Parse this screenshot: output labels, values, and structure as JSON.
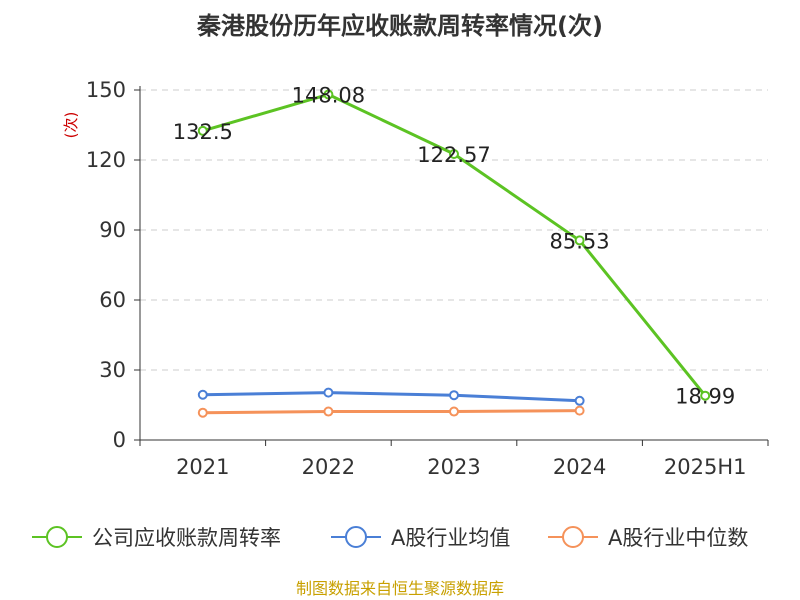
{
  "chart_data": {
    "type": "line",
    "title": "秦港股份历年应收账款周转率情况(次)",
    "ylabel": "(次)",
    "xlabel": "",
    "categories": [
      "2021",
      "2022",
      "2023",
      "2024",
      "2025H1"
    ],
    "ylim": [
      0,
      150
    ],
    "yticks": [
      0,
      30,
      60,
      90,
      120,
      150
    ],
    "grid": true,
    "legend_position": "bottom",
    "series": [
      {
        "name": "公司应收账款周转率",
        "color": "#5cc323",
        "values": [
          132.5,
          148.08,
          122.57,
          85.53,
          18.99
        ],
        "labels": [
          "132.5",
          "148.08",
          "122.57",
          "85.53",
          "18.99"
        ]
      },
      {
        "name": "A股行业均值",
        "color": "#4a7fd6",
        "values": [
          19.4,
          20.3,
          19.2,
          16.8,
          null
        ]
      },
      {
        "name": "A股行业中位数",
        "color": "#f5925a",
        "values": [
          11.7,
          12.2,
          12.2,
          12.6,
          null
        ]
      }
    ]
  },
  "source": "制图数据来自恒生聚源数据库"
}
